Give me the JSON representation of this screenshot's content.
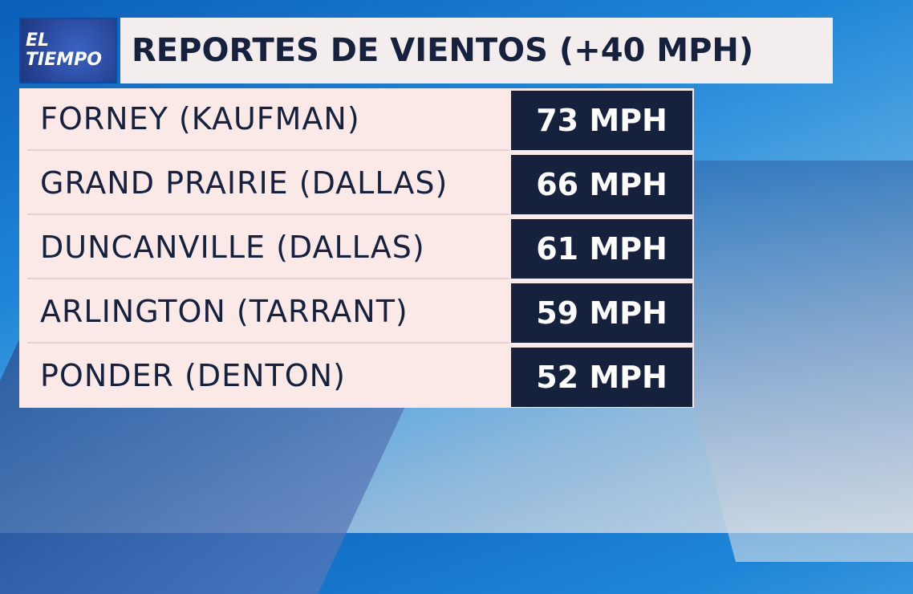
{
  "logo": {
    "line1": "EL",
    "line2": "TIEMPO"
  },
  "title": "REPORTES DE VIENTOS (+40 MPH)",
  "rows": [
    {
      "location": "FORNEY (KAUFMAN)",
      "value": "73 MPH"
    },
    {
      "location": "GRAND PRAIRIE (DALLAS)",
      "value": "66 MPH"
    },
    {
      "location": "DUNCANVILLE (DALLAS)",
      "value": "61 MPH"
    },
    {
      "location": "ARLINGTON (TARRANT)",
      "value": "59 MPH"
    },
    {
      "location": "PONDER (DENTON)",
      "value": "52 MPH"
    }
  ],
  "colors": {
    "navy": "#15213d",
    "panel": "#fbe9e8"
  }
}
